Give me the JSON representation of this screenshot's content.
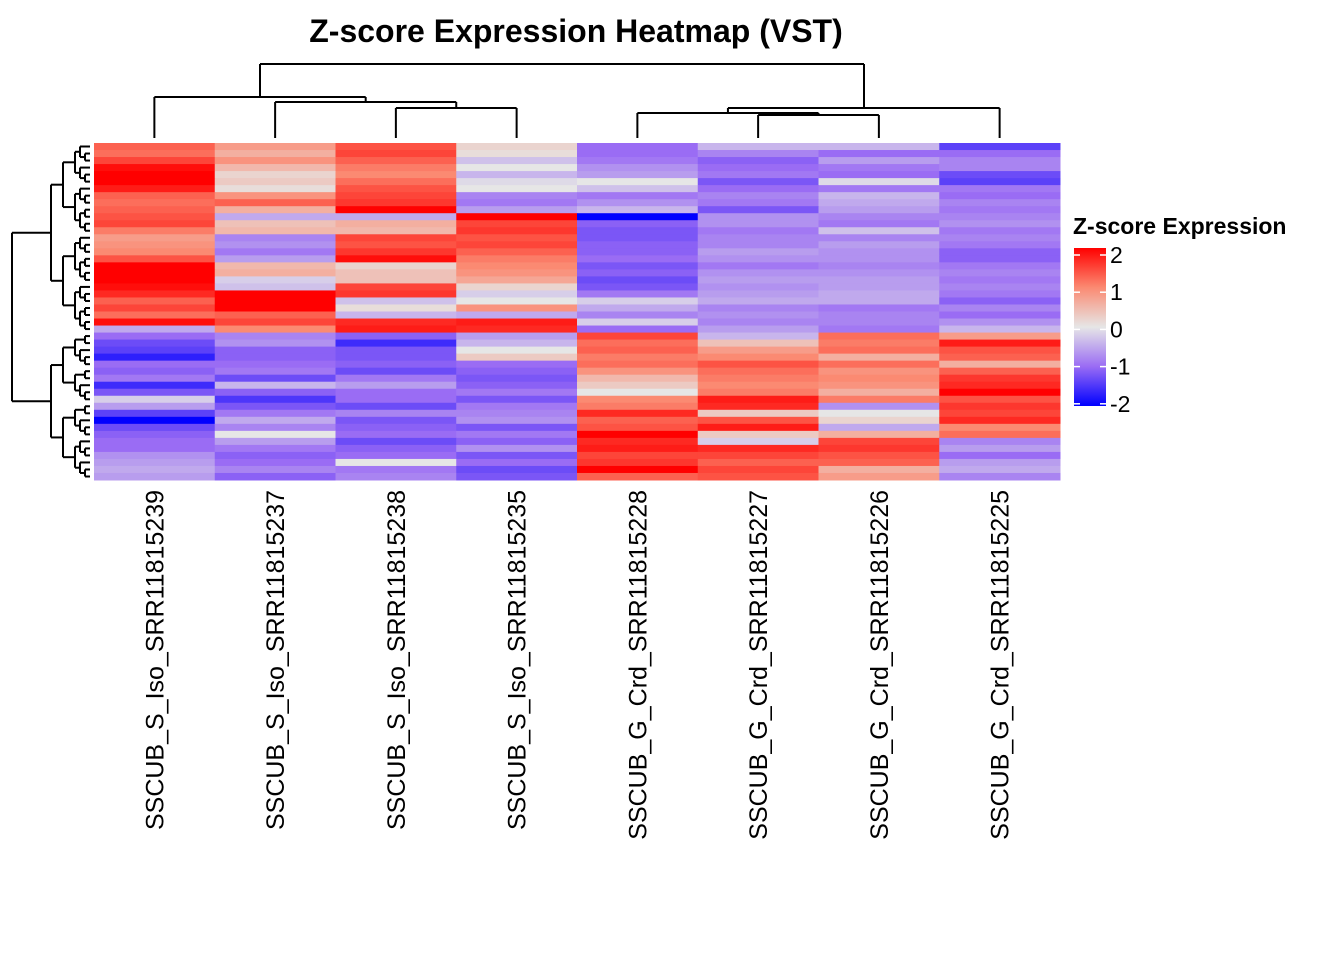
{
  "chart_data": {
    "type": "heatmap",
    "title": "Z-score Expression Heatmap (VST)",
    "columns": [
      "SSCUB_S_Iso_SRR11815239",
      "SSCUB_S_Iso_SRR11815237",
      "SSCUB_S_Iso_SRR11815238",
      "SSCUB_S_Iso_SRR11815235",
      "SSCUB_G_Crd_SRR11815228",
      "SSCUB_G_Crd_SRR11815227",
      "SSCUB_G_Crd_SRR11815226",
      "SSCUB_G_Crd_SRR11815225"
    ],
    "legend": {
      "title": "Z-score Expression",
      "ticks": [
        "2",
        "1",
        "0",
        "-1",
        "-2"
      ],
      "range": [
        -2,
        2
      ],
      "colors": {
        "-2": "#0000ff",
        "-1": "#9a6cf4",
        "0": "#e6e6e6",
        "1": "#fb8a72",
        "2": "#ff0000"
      }
    },
    "row_dendrogram": true,
    "column_dendrogram": true,
    "values": [
      [
        1.3,
        0.8,
        1.4,
        0.2,
        -1.0,
        -0.4,
        -0.4,
        -1.4
      ],
      [
        1.2,
        0.6,
        1.5,
        0.1,
        -1.0,
        -0.8,
        -1.0,
        -1.0
      ],
      [
        1.5,
        0.9,
        1.3,
        -0.3,
        -0.9,
        -1.1,
        -0.6,
        -0.8
      ],
      [
        1.9,
        0.5,
        1.1,
        0.0,
        -0.7,
        -1.0,
        -0.9,
        -0.8
      ],
      [
        2.0,
        0.2,
        1.0,
        -0.4,
        -0.6,
        -0.9,
        -1.0,
        -1.3
      ],
      [
        2.0,
        0.3,
        1.2,
        -0.1,
        0.0,
        -1.2,
        -0.1,
        -1.4
      ],
      [
        1.8,
        0.1,
        1.4,
        0.0,
        -0.3,
        -1.0,
        -0.9,
        -0.9
      ],
      [
        1.3,
        0.9,
        1.5,
        -0.8,
        -0.9,
        -0.8,
        -0.4,
        -1.0
      ],
      [
        1.2,
        1.3,
        1.6,
        -0.9,
        -0.7,
        -0.9,
        -0.5,
        -0.8
      ],
      [
        1.3,
        0.6,
        2.0,
        -0.6,
        -0.4,
        -1.2,
        -0.6,
        -0.9
      ],
      [
        1.4,
        -0.5,
        -0.5,
        2.0,
        -2.0,
        -0.7,
        -0.8,
        -0.8
      ],
      [
        1.5,
        0.4,
        0.6,
        1.5,
        -1.1,
        -0.7,
        -0.9,
        -0.7
      ],
      [
        1.1,
        0.5,
        0.5,
        1.6,
        -1.2,
        -0.9,
        -0.3,
        -0.9
      ],
      [
        0.8,
        -0.8,
        1.5,
        1.4,
        -1.2,
        -0.8,
        -0.8,
        -0.8
      ],
      [
        0.9,
        -0.7,
        1.4,
        1.5,
        -1.1,
        -0.8,
        -0.6,
        -0.9
      ],
      [
        1.0,
        -0.9,
        1.6,
        1.3,
        -1.1,
        -0.6,
        -0.7,
        -1.1
      ],
      [
        1.4,
        -0.6,
        1.9,
        1.1,
        -1.0,
        -0.7,
        -0.7,
        -1.1
      ],
      [
        2.0,
        0.5,
        0.2,
        1.0,
        -1.2,
        -0.9,
        -0.8,
        -0.9
      ],
      [
        2.0,
        0.6,
        0.4,
        0.9,
        -1.1,
        -0.7,
        -0.7,
        -0.8
      ],
      [
        2.0,
        -0.2,
        0.4,
        0.7,
        -1.3,
        -0.6,
        -0.6,
        -0.9
      ],
      [
        1.9,
        -0.3,
        1.5,
        0.2,
        -1.2,
        -0.7,
        -0.6,
        -0.8
      ],
      [
        1.7,
        2.0,
        1.6,
        -0.2,
        -0.9,
        -0.6,
        -0.5,
        -0.9
      ],
      [
        1.3,
        2.0,
        -0.3,
        0.0,
        -0.2,
        -0.5,
        -0.5,
        -1.1
      ],
      [
        1.5,
        2.0,
        0.1,
        0.9,
        -0.5,
        -0.8,
        -0.9,
        -0.8
      ],
      [
        1.2,
        1.3,
        -0.4,
        -0.5,
        -0.8,
        -0.7,
        -0.8,
        -1.0
      ],
      [
        1.9,
        1.5,
        1.7,
        1.8,
        -0.2,
        -0.8,
        -0.8,
        -0.7
      ],
      [
        -0.5,
        1.0,
        1.8,
        1.7,
        -1.0,
        -0.6,
        -0.9,
        -0.4
      ],
      [
        -1.0,
        -0.8,
        -1.1,
        -0.6,
        1.5,
        -0.4,
        1.2,
        0.8
      ],
      [
        -1.3,
        -0.7,
        -1.6,
        -0.4,
        1.2,
        0.4,
        1.1,
        1.8
      ],
      [
        -1.4,
        -1.1,
        -1.2,
        0.0,
        1.3,
        0.8,
        1.2,
        1.4
      ],
      [
        -1.7,
        -1.1,
        -1.2,
        0.3,
        1.1,
        1.0,
        0.6,
        1.3
      ],
      [
        -1.0,
        -1.0,
        -1.1,
        -1.0,
        1.2,
        1.4,
        1.2,
        0.6
      ],
      [
        -1.1,
        -0.9,
        -1.3,
        -1.1,
        0.9,
        1.2,
        0.9,
        1.3
      ],
      [
        -0.9,
        -1.3,
        -0.9,
        -1.2,
        0.5,
        1.1,
        1.0,
        1.6
      ],
      [
        -1.6,
        -0.4,
        -0.6,
        -1.1,
        0.3,
        1.0,
        0.9,
        1.7
      ],
      [
        -1.2,
        -1.1,
        -1.0,
        -0.9,
        0.0,
        1.1,
        0.6,
        2.0
      ],
      [
        -0.2,
        -1.5,
        -1.0,
        -1.2,
        1.0,
        1.8,
        1.1,
        1.4
      ],
      [
        -0.6,
        -1.2,
        -1.3,
        -0.9,
        1.1,
        1.7,
        -0.7,
        1.6
      ],
      [
        -1.4,
        -0.9,
        -0.8,
        -0.8,
        1.7,
        0.3,
        0.0,
        1.5
      ],
      [
        -2.0,
        -0.5,
        -1.2,
        -0.7,
        1.3,
        1.4,
        0.2,
        1.7
      ],
      [
        -1.3,
        -0.8,
        -1.1,
        -1.2,
        1.4,
        1.8,
        -0.5,
        1.0
      ],
      [
        -1.1,
        0.0,
        -1.0,
        -0.9,
        2.0,
        0.3,
        0.6,
        1.2
      ],
      [
        -1.0,
        -0.6,
        -1.3,
        -1.1,
        1.7,
        -0.2,
        1.5,
        -0.8
      ],
      [
        -1.0,
        -0.9,
        -1.1,
        -0.7,
        1.8,
        1.7,
        1.6,
        -0.6
      ],
      [
        -0.7,
        -1.1,
        -1.0,
        -1.2,
        1.5,
        1.5,
        1.4,
        -1.0
      ],
      [
        -0.6,
        -1.0,
        0.0,
        -1.0,
        1.6,
        1.3,
        1.3,
        -0.6
      ],
      [
        -0.5,
        -0.8,
        -0.9,
        -1.3,
        2.0,
        1.5,
        0.6,
        -0.5
      ],
      [
        -0.6,
        -1.1,
        -0.8,
        -1.2,
        1.3,
        1.4,
        0.8,
        -0.8
      ]
    ]
  }
}
